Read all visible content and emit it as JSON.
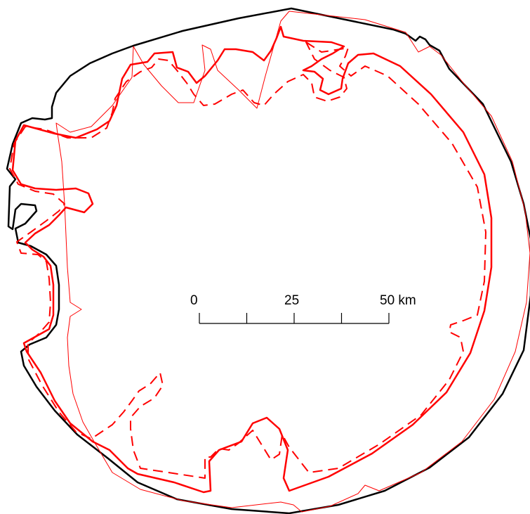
{
  "map": {
    "colors": {
      "black_outline": "#000000",
      "red_outline": "#ff0000"
    },
    "outlines": [
      {
        "id": "outer-boundary",
        "color": "black",
        "style": "solid-thick"
      },
      {
        "id": "boundary-a",
        "color": "red",
        "style": "solid-medium"
      },
      {
        "id": "boundary-b",
        "color": "red",
        "style": "dashed"
      },
      {
        "id": "boundary-c",
        "color": "red",
        "style": "solid-thin"
      }
    ]
  },
  "scale_bar": {
    "labels": [
      "0",
      "25",
      "50 km"
    ],
    "max_km": 50,
    "major_ticks_km": [
      0,
      25,
      50
    ],
    "minor_ticks_km": [
      12.5,
      37.5
    ]
  }
}
